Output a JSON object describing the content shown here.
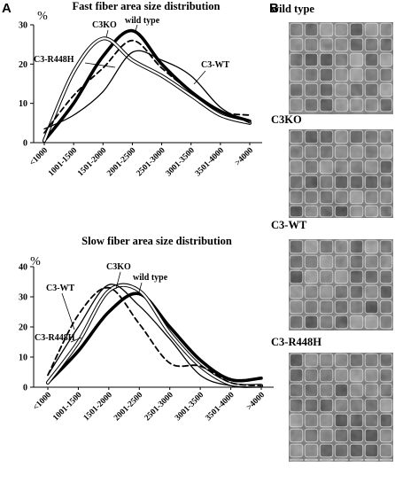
{
  "panels": {
    "a": "A",
    "b": "B"
  },
  "chart_data": [
    {
      "type": "line",
      "title": "Fast fiber area size distribution",
      "ylabel": "%",
      "ylim": [
        0,
        30
      ],
      "yticks": [
        0,
        10,
        20,
        30
      ],
      "categories": [
        "<1000",
        "1001-1500",
        "1501-2000",
        "2001-2500",
        "2501-3000",
        "3001-3500",
        "3501-4000",
        ">4000"
      ],
      "series": [
        {
          "name": "wild type",
          "values": [
            0.5,
            10,
            22,
            28.5,
            20,
            13,
            8,
            5.5
          ]
        },
        {
          "name": "C3KO",
          "values": [
            0.5,
            18,
            26.5,
            21,
            17,
            12,
            7,
            5
          ]
        },
        {
          "name": "C3-WT",
          "values": [
            3.5,
            7,
            13,
            23,
            21,
            17,
            9,
            5
          ]
        },
        {
          "name": "C3-R448H",
          "values": [
            2.5,
            12,
            19,
            26,
            19,
            13,
            8,
            7
          ]
        }
      ],
      "annotations": [
        "C3KO",
        "wild type",
        "C3-R448H",
        "C3-WT"
      ]
    },
    {
      "type": "line",
      "title": "Slow fiber area size distribution",
      "ylabel": "%",
      "ylim": [
        0,
        40
      ],
      "yticks": [
        0,
        10,
        20,
        30,
        40
      ],
      "categories": [
        "<1000",
        "1001-1500",
        "1501-2000",
        "2001-2500",
        "2501-3000",
        "3001-3500",
        "3501-4000",
        ">4000"
      ],
      "series": [
        {
          "name": "wild type",
          "values": [
            1.5,
            12,
            25,
            31,
            20,
            9,
            2.5,
            3
          ]
        },
        {
          "name": "C3KO",
          "values": [
            1.5,
            15,
            32,
            32,
            18,
            7,
            1,
            0.5
          ]
        },
        {
          "name": "C3-WT",
          "values": [
            4,
            20,
            34,
            27,
            16,
            4,
            0.5,
            0
          ]
        },
        {
          "name": "C3-R448H",
          "values": [
            4,
            24,
            33,
            21,
            8,
            7,
            1.5,
            0.5
          ]
        }
      ],
      "annotations": [
        "C3KO",
        "wild type",
        "C3-WT",
        "C3-R448H"
      ]
    }
  ],
  "micrographs": [
    {
      "label": "wild type"
    },
    {
      "label": "C3KO"
    },
    {
      "label": "C3-WT"
    },
    {
      "label": "C3-R448H"
    }
  ]
}
